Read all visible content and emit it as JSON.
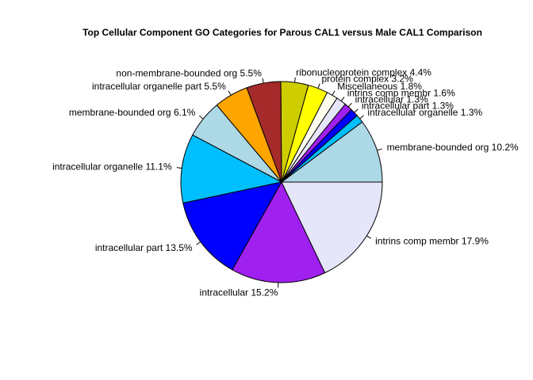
{
  "chart_data": {
    "type": "pie",
    "title": "Top Cellular Component GO Categories for Parous CAL1 versus Male CAL1 Comparison",
    "slices": [
      {
        "label": "membrane-bounded org 10.2%",
        "value": 10.2,
        "color": "#add8e6"
      },
      {
        "label": "intracellular organelle 1.3%",
        "value": 1.3,
        "color": "#00bfff"
      },
      {
        "label": "intracellular part 1.3%",
        "value": 1.3,
        "color": "#0000ff"
      },
      {
        "label": "intracellular 1.3%",
        "value": 1.3,
        "color": "#a020f0"
      },
      {
        "label": "intrins comp membr 1.6%",
        "value": 1.6,
        "color": "#e6e6fa"
      },
      {
        "label": "Miscellaneous 1.8%",
        "value": 1.8,
        "color": "#fffff0"
      },
      {
        "label": "protein complex 3.2%",
        "value": 3.2,
        "color": "#ffff00"
      },
      {
        "label": "ribonucleoprotein complex 4.4%",
        "value": 4.4,
        "color": "#cdcd00"
      },
      {
        "label": "non-membrane-bounded org 5.5%",
        "value": 5.5,
        "color": "#a52a2a"
      },
      {
        "label": "intracellular organelle part 5.5%",
        "value": 5.5,
        "color": "#ffa500"
      },
      {
        "label": "membrane-bounded org 6.1%",
        "value": 6.1,
        "color": "#add8e6"
      },
      {
        "label": "intracellular organelle 11.1%",
        "value": 11.1,
        "color": "#00bfff"
      },
      {
        "label": "intracellular part 13.5%",
        "value": 13.5,
        "color": "#0000ff"
      },
      {
        "label": "intracellular 15.2%",
        "value": 15.2,
        "color": "#a020f0"
      },
      {
        "label": "intrins comp membr 17.9%",
        "value": 17.9,
        "color": "#e6e6fa"
      }
    ],
    "start": "3 o'clock",
    "direction": "counterclockwise"
  }
}
